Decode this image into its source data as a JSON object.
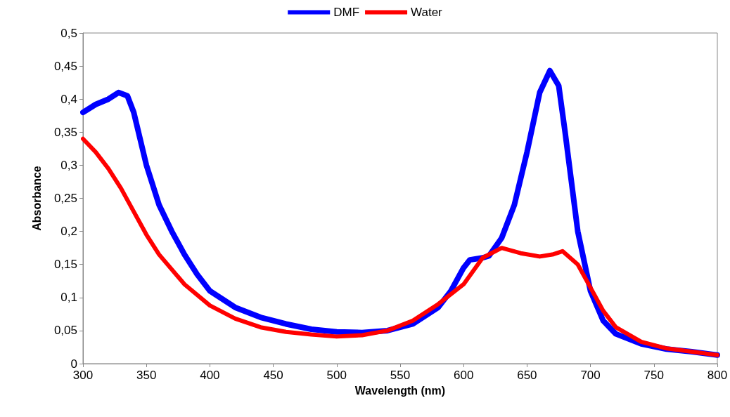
{
  "chart_data": {
    "type": "line",
    "xlabel": "Wavelength (nm)",
    "ylabel": "Absorbance",
    "legend": "top",
    "grid": false,
    "marker": "none",
    "xlim": [
      300,
      800
    ],
    "xticks": [
      300,
      350,
      400,
      450,
      500,
      550,
      600,
      650,
      700,
      750,
      800
    ],
    "ylim": [
      0,
      0.5
    ],
    "yticks": [
      0,
      {
        "value": 0.05,
        "label": "0,05"
      },
      {
        "value": 0.1,
        "label": "0,1"
      },
      {
        "value": 0.15,
        "label": "0,15"
      },
      {
        "value": 0.2,
        "label": "0,2"
      },
      {
        "value": 0.25,
        "label": "0,25"
      },
      {
        "value": 0.3,
        "label": "0,3"
      },
      {
        "value": 0.35,
        "label": "0,35"
      },
      {
        "value": 0.4,
        "label": "0,4"
      },
      {
        "value": 0.45,
        "label": "0,45"
      },
      {
        "value": 0.5,
        "label": "0,5"
      }
    ],
    "series": [
      {
        "name": "DMF",
        "color": "#0000ff",
        "x": [
          300,
          310,
          320,
          328,
          335,
          340,
          350,
          360,
          370,
          380,
          390,
          400,
          420,
          440,
          460,
          480,
          500,
          520,
          540,
          560,
          580,
          590,
          600,
          605,
          615,
          620,
          630,
          640,
          650,
          660,
          668,
          675,
          680,
          690,
          700,
          710,
          720,
          740,
          760,
          780,
          800
        ],
        "values": [
          0.38,
          0.392,
          0.4,
          0.41,
          0.405,
          0.38,
          0.3,
          0.24,
          0.2,
          0.165,
          0.135,
          0.11,
          0.085,
          0.07,
          0.06,
          0.052,
          0.048,
          0.047,
          0.05,
          0.06,
          0.085,
          0.11,
          0.145,
          0.157,
          0.16,
          0.163,
          0.19,
          0.24,
          0.32,
          0.41,
          0.443,
          0.42,
          0.35,
          0.2,
          0.11,
          0.065,
          0.045,
          0.03,
          0.022,
          0.018,
          0.013
        ]
      },
      {
        "name": "Water",
        "color": "#ff0000",
        "x": [
          300,
          310,
          320,
          330,
          340,
          350,
          360,
          380,
          400,
          420,
          440,
          460,
          480,
          500,
          520,
          540,
          560,
          580,
          600,
          615,
          630,
          645,
          660,
          670,
          678,
          690,
          700,
          710,
          720,
          740,
          760,
          780,
          800
        ],
        "values": [
          0.34,
          0.32,
          0.295,
          0.265,
          0.23,
          0.195,
          0.165,
          0.12,
          0.088,
          0.068,
          0.055,
          0.048,
          0.044,
          0.041,
          0.043,
          0.05,
          0.065,
          0.09,
          0.12,
          0.16,
          0.175,
          0.167,
          0.162,
          0.165,
          0.17,
          0.15,
          0.115,
          0.08,
          0.055,
          0.033,
          0.023,
          0.018,
          0.013
        ]
      }
    ]
  }
}
